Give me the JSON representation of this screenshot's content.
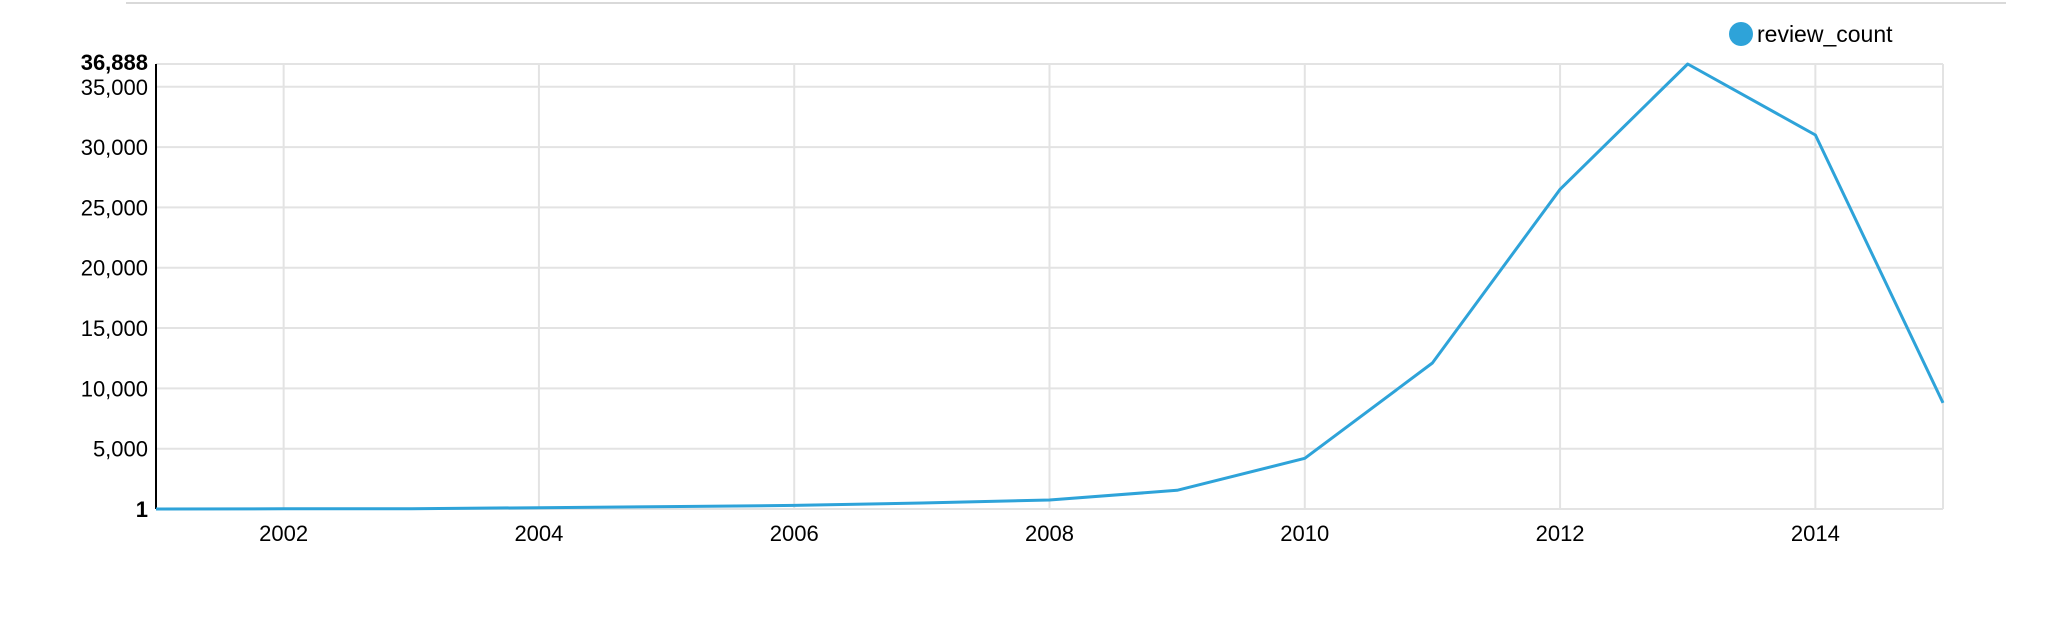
{
  "chart_data": {
    "type": "line",
    "x_label_values": [
      2002,
      2004,
      2006,
      2008,
      2010,
      2012,
      2014
    ],
    "y_tick_values": [
      5000,
      10000,
      15000,
      20000,
      25000,
      30000,
      35000
    ],
    "y_tick_labels": [
      "5,000",
      "10,000",
      "15,000",
      "20,000",
      "25,000",
      "30,000",
      "35,000"
    ],
    "y_max_label": "36,888",
    "y_min_label": "1",
    "ylim": [
      1,
      36888
    ],
    "xlim": [
      2001,
      2015
    ],
    "grid": true,
    "legend_position": "top-right",
    "series": [
      {
        "name": "review_count",
        "color": "#2ea3d9",
        "x": [
          2001,
          2002,
          2003,
          2004,
          2005,
          2006,
          2007,
          2008,
          2009,
          2010,
          2011,
          2012,
          2013,
          2014,
          2015
        ],
        "values": [
          1,
          20,
          30,
          110,
          200,
          300,
          500,
          750,
          1550,
          4200,
          12100,
          26500,
          36888,
          31000,
          8800
        ]
      }
    ]
  }
}
